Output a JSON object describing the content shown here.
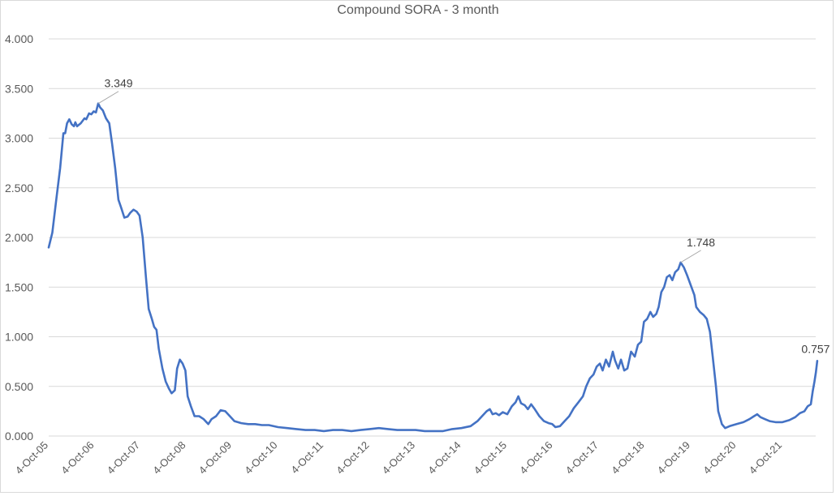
{
  "chart_data": {
    "type": "line",
    "title": "Compound SORA - 3 month",
    "xlabel": "",
    "ylabel": "",
    "ylim": [
      0,
      4
    ],
    "grid": true,
    "legend": "none",
    "y_ticks": [
      "0.000",
      "0.500",
      "1.000",
      "1.500",
      "2.000",
      "2.500",
      "3.000",
      "3.500",
      "4.000"
    ],
    "x_ticks": [
      "4-Oct-05",
      "4-Oct-06",
      "4-Oct-07",
      "4-Oct-08",
      "4-Oct-09",
      "4-Oct-10",
      "4-Oct-11",
      "4-Oct-12",
      "4-Oct-13",
      "4-Oct-14",
      "4-Oct-15",
      "4-Oct-16",
      "4-Oct-17",
      "4-Oct-18",
      "4-Oct-19",
      "4-Oct-20",
      "4-Oct-21"
    ],
    "series": [
      {
        "name": "Compound SORA - 3 month",
        "color": "#4472c4",
        "points_years_since_oct05_value": [
          [
            0.0,
            1.9
          ],
          [
            0.08,
            2.05
          ],
          [
            0.17,
            2.4
          ],
          [
            0.25,
            2.7
          ],
          [
            0.32,
            3.05
          ],
          [
            0.36,
            3.05
          ],
          [
            0.4,
            3.15
          ],
          [
            0.45,
            3.19
          ],
          [
            0.5,
            3.14
          ],
          [
            0.55,
            3.12
          ],
          [
            0.58,
            3.16
          ],
          [
            0.62,
            3.12
          ],
          [
            0.7,
            3.15
          ],
          [
            0.78,
            3.2
          ],
          [
            0.82,
            3.19
          ],
          [
            0.88,
            3.25
          ],
          [
            0.93,
            3.24
          ],
          [
            0.98,
            3.27
          ],
          [
            1.03,
            3.26
          ],
          [
            1.08,
            3.349
          ],
          [
            1.12,
            3.31
          ],
          [
            1.18,
            3.28
          ],
          [
            1.25,
            3.2
          ],
          [
            1.32,
            3.15
          ],
          [
            1.38,
            2.95
          ],
          [
            1.45,
            2.7
          ],
          [
            1.52,
            2.38
          ],
          [
            1.58,
            2.3
          ],
          [
            1.65,
            2.2
          ],
          [
            1.72,
            2.21
          ],
          [
            1.78,
            2.25
          ],
          [
            1.85,
            2.28
          ],
          [
            1.92,
            2.26
          ],
          [
            1.98,
            2.22
          ],
          [
            2.05,
            2.0
          ],
          [
            2.12,
            1.6
          ],
          [
            2.18,
            1.28
          ],
          [
            2.25,
            1.18
          ],
          [
            2.3,
            1.1
          ],
          [
            2.35,
            1.07
          ],
          [
            2.4,
            0.88
          ],
          [
            2.48,
            0.68
          ],
          [
            2.55,
            0.55
          ],
          [
            2.62,
            0.48
          ],
          [
            2.68,
            0.43
          ],
          [
            2.75,
            0.46
          ],
          [
            2.8,
            0.68
          ],
          [
            2.86,
            0.77
          ],
          [
            2.92,
            0.73
          ],
          [
            2.98,
            0.66
          ],
          [
            3.03,
            0.4
          ],
          [
            3.1,
            0.3
          ],
          [
            3.18,
            0.2
          ],
          [
            3.28,
            0.2
          ],
          [
            3.38,
            0.17
          ],
          [
            3.48,
            0.12
          ],
          [
            3.55,
            0.17
          ],
          [
            3.65,
            0.2
          ],
          [
            3.75,
            0.26
          ],
          [
            3.85,
            0.25
          ],
          [
            3.95,
            0.2
          ],
          [
            4.05,
            0.15
          ],
          [
            4.2,
            0.13
          ],
          [
            4.35,
            0.12
          ],
          [
            4.5,
            0.12
          ],
          [
            4.65,
            0.11
          ],
          [
            4.8,
            0.11
          ],
          [
            5.0,
            0.09
          ],
          [
            5.2,
            0.08
          ],
          [
            5.4,
            0.07
          ],
          [
            5.6,
            0.06
          ],
          [
            5.8,
            0.06
          ],
          [
            6.0,
            0.05
          ],
          [
            6.2,
            0.06
          ],
          [
            6.4,
            0.06
          ],
          [
            6.6,
            0.05
          ],
          [
            6.8,
            0.06
          ],
          [
            7.0,
            0.07
          ],
          [
            7.2,
            0.08
          ],
          [
            7.4,
            0.07
          ],
          [
            7.6,
            0.06
          ],
          [
            7.8,
            0.06
          ],
          [
            8.0,
            0.06
          ],
          [
            8.2,
            0.05
          ],
          [
            8.4,
            0.05
          ],
          [
            8.6,
            0.05
          ],
          [
            8.8,
            0.07
          ],
          [
            9.0,
            0.08
          ],
          [
            9.2,
            0.1
          ],
          [
            9.35,
            0.15
          ],
          [
            9.45,
            0.2
          ],
          [
            9.55,
            0.25
          ],
          [
            9.62,
            0.27
          ],
          [
            9.68,
            0.22
          ],
          [
            9.75,
            0.23
          ],
          [
            9.82,
            0.21
          ],
          [
            9.9,
            0.24
          ],
          [
            10.0,
            0.22
          ],
          [
            10.1,
            0.3
          ],
          [
            10.18,
            0.34
          ],
          [
            10.24,
            0.4
          ],
          [
            10.3,
            0.33
          ],
          [
            10.38,
            0.31
          ],
          [
            10.45,
            0.27
          ],
          [
            10.52,
            0.32
          ],
          [
            10.6,
            0.27
          ],
          [
            10.7,
            0.2
          ],
          [
            10.8,
            0.15
          ],
          [
            10.9,
            0.13
          ],
          [
            10.98,
            0.12
          ],
          [
            11.05,
            0.09
          ],
          [
            11.15,
            0.1
          ],
          [
            11.25,
            0.15
          ],
          [
            11.35,
            0.2
          ],
          [
            11.45,
            0.28
          ],
          [
            11.55,
            0.34
          ],
          [
            11.65,
            0.4
          ],
          [
            11.72,
            0.5
          ],
          [
            11.8,
            0.58
          ],
          [
            11.88,
            0.62
          ],
          [
            11.95,
            0.7
          ],
          [
            12.02,
            0.73
          ],
          [
            12.08,
            0.66
          ],
          [
            12.15,
            0.77
          ],
          [
            12.22,
            0.7
          ],
          [
            12.3,
            0.85
          ],
          [
            12.35,
            0.76
          ],
          [
            12.42,
            0.68
          ],
          [
            12.48,
            0.77
          ],
          [
            12.55,
            0.66
          ],
          [
            12.62,
            0.68
          ],
          [
            12.7,
            0.85
          ],
          [
            12.78,
            0.8
          ],
          [
            12.85,
            0.92
          ],
          [
            12.92,
            0.95
          ],
          [
            12.98,
            1.15
          ],
          [
            13.05,
            1.18
          ],
          [
            13.12,
            1.25
          ],
          [
            13.18,
            1.2
          ],
          [
            13.25,
            1.23
          ],
          [
            13.3,
            1.3
          ],
          [
            13.36,
            1.45
          ],
          [
            13.42,
            1.5
          ],
          [
            13.48,
            1.6
          ],
          [
            13.54,
            1.62
          ],
          [
            13.6,
            1.57
          ],
          [
            13.66,
            1.65
          ],
          [
            13.73,
            1.68
          ],
          [
            13.78,
            1.748
          ],
          [
            13.85,
            1.7
          ],
          [
            13.92,
            1.62
          ],
          [
            14.0,
            1.52
          ],
          [
            14.08,
            1.42
          ],
          [
            14.12,
            1.3
          ],
          [
            14.2,
            1.25
          ],
          [
            14.28,
            1.22
          ],
          [
            14.35,
            1.18
          ],
          [
            14.42,
            1.05
          ],
          [
            14.48,
            0.8
          ],
          [
            14.55,
            0.5
          ],
          [
            14.6,
            0.25
          ],
          [
            14.68,
            0.12
          ],
          [
            14.75,
            0.08
          ],
          [
            14.85,
            0.1
          ],
          [
            15.0,
            0.12
          ],
          [
            15.15,
            0.14
          ],
          [
            15.28,
            0.17
          ],
          [
            15.38,
            0.2
          ],
          [
            15.45,
            0.22
          ],
          [
            15.52,
            0.19
          ],
          [
            15.62,
            0.17
          ],
          [
            15.72,
            0.15
          ],
          [
            15.85,
            0.14
          ],
          [
            16.0,
            0.14
          ],
          [
            16.15,
            0.16
          ],
          [
            16.28,
            0.19
          ],
          [
            16.38,
            0.23
          ],
          [
            16.48,
            0.25
          ],
          [
            16.55,
            0.3
          ],
          [
            16.62,
            0.32
          ],
          [
            16.66,
            0.45
          ],
          [
            16.7,
            0.55
          ],
          [
            16.73,
            0.64
          ],
          [
            16.76,
            0.757
          ]
        ]
      }
    ],
    "annotations": [
      {
        "label": "3.349",
        "x_years": 1.08,
        "value": 3.349
      },
      {
        "label": "1.748",
        "x_years": 13.78,
        "value": 1.748
      },
      {
        "label": "0.757",
        "x_years": 16.76,
        "value": 0.757
      }
    ],
    "colors": {
      "line": "#4472c4",
      "grid": "#d9d9d9",
      "text": "#595959",
      "frame": "#d9d9d9",
      "leader": "#a6a6a6"
    }
  }
}
